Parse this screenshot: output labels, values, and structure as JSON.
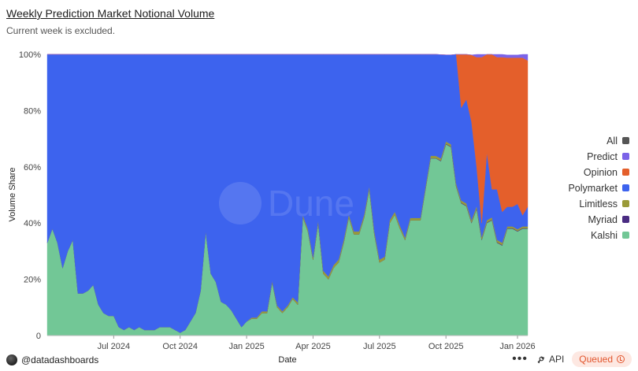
{
  "header": {
    "title": "Weekly Prediction Market Notional Volume",
    "subtitle": "Current week is excluded."
  },
  "chart_data": {
    "type": "area",
    "stacked_percent": true,
    "title": "Weekly Prediction Market Notional Volume",
    "xlabel": "Date",
    "ylabel": "Volume Share",
    "ylim": [
      0,
      100
    ],
    "y_ticks": [
      "0",
      "20%",
      "40%",
      "60%",
      "80%",
      "100%"
    ],
    "x_ticks": [
      "Jul 2024",
      "Oct 2024",
      "Jan 2025",
      "Apr 2025",
      "Jul 2025",
      "Oct 2025",
      "Jan 2026"
    ],
    "x_tick_week_index": [
      13,
      26,
      39,
      52,
      65,
      78,
      92
    ],
    "legend_position": "right",
    "legend": [
      {
        "name": "All",
        "color": "#555555"
      },
      {
        "name": "Predict",
        "color": "#7b63e8"
      },
      {
        "name": "Opinion",
        "color": "#e45f2b"
      },
      {
        "name": "Polymarket",
        "color": "#3d63ee"
      },
      {
        "name": "Limitless",
        "color": "#9a9a38"
      },
      {
        "name": "Myriad",
        "color": "#4a2c82"
      },
      {
        "name": "Kalshi",
        "color": "#72c796"
      }
    ],
    "weeks": 95,
    "series_bottom_to_top": [
      "Kalshi",
      "Myriad",
      "Limitless",
      "Polymarket",
      "Opinion",
      "Predict"
    ],
    "series": [
      {
        "name": "Kalshi",
        "values": [
          33,
          38,
          33,
          24,
          30,
          34,
          15,
          15,
          16,
          18,
          11,
          8,
          7,
          7,
          3,
          2,
          3,
          2,
          3,
          2,
          2,
          2,
          3,
          3,
          3,
          2,
          1,
          2,
          5,
          8,
          16,
          37,
          22,
          19,
          12,
          11,
          9,
          6,
          3,
          5,
          6,
          6,
          8,
          8,
          19,
          10,
          8,
          10,
          13,
          11,
          42,
          37,
          27,
          40,
          22,
          20,
          24,
          26,
          33,
          42,
          36,
          36,
          42,
          52,
          36,
          26,
          27,
          40,
          43,
          38,
          34,
          41,
          41,
          41,
          52,
          63,
          63,
          62,
          68,
          67,
          53,
          47,
          46,
          40,
          45,
          34,
          40,
          41,
          33,
          32,
          38,
          38,
          37,
          38,
          38
        ]
      },
      {
        "name": "Myriad",
        "values": [
          0,
          0,
          0,
          0,
          0,
          0,
          0,
          0,
          0,
          0,
          0,
          0,
          0,
          0,
          0,
          0,
          0,
          0,
          0,
          0,
          0,
          0,
          0,
          0,
          0,
          0,
          0,
          0,
          0,
          0,
          0,
          0,
          0,
          0,
          0,
          0,
          0,
          0,
          0,
          0,
          0,
          0,
          0,
          0,
          0,
          0,
          0,
          0,
          0,
          0,
          0,
          0,
          0,
          0,
          0,
          0,
          0,
          0,
          0,
          0,
          0,
          0,
          0,
          0,
          0,
          0,
          0,
          0,
          0,
          0,
          0,
          0,
          0,
          0,
          0.1,
          0.1,
          0.1,
          0.2,
          0.2,
          0.2,
          0.2,
          0.2,
          0.2,
          0.2,
          0.2,
          0.2,
          0.2,
          0.2,
          0.2,
          0.2,
          0.2,
          0.2,
          0.2,
          0.2,
          0.2
        ]
      },
      {
        "name": "Limitless",
        "values": [
          0,
          0,
          0,
          0,
          0,
          0,
          0,
          0,
          0,
          0,
          0,
          0,
          0,
          0,
          0,
          0,
          0,
          0,
          0,
          0,
          0,
          0,
          0,
          0,
          0,
          0,
          0,
          0,
          0,
          0,
          0,
          0,
          0,
          0,
          0,
          0,
          0,
          0,
          0,
          0,
          0.4,
          0.4,
          0.6,
          0.6,
          0.4,
          0.6,
          0.6,
          0.6,
          0.6,
          0.8,
          0.8,
          0.8,
          0.8,
          0.8,
          1,
          1,
          1,
          1,
          1,
          1,
          1,
          1,
          1,
          1,
          1,
          1,
          1,
          1,
          1,
          1,
          0.8,
          0.8,
          0.8,
          0.8,
          0.8,
          0.8,
          0.8,
          0.8,
          0.8,
          0.8,
          0.8,
          0.8,
          0.8,
          0.8,
          0.8,
          0.8,
          0.8,
          0.8,
          0.8,
          0.8,
          0.6,
          0.6,
          0.6,
          0.6,
          0.6
        ]
      },
      {
        "name": "Polymarket",
        "values": [
          67,
          62,
          67,
          76,
          70,
          66,
          85,
          85,
          84,
          82,
          89,
          92,
          93,
          93,
          97,
          98,
          97,
          98,
          97,
          98,
          98,
          98,
          97,
          97,
          97,
          98,
          99,
          98,
          95,
          92,
          84,
          63,
          78,
          81,
          88,
          89,
          91,
          94,
          97,
          95,
          93.6,
          93.6,
          91.4,
          91.4,
          80.6,
          89.4,
          91.4,
          89.4,
          86.4,
          88.2,
          57.2,
          62.2,
          72.2,
          59.2,
          77,
          79,
          75,
          73,
          66,
          58,
          63,
          63,
          57,
          47,
          63,
          73,
          72,
          59,
          56,
          61,
          65.2,
          58.2,
          58.2,
          58.2,
          47.1,
          36.1,
          36.1,
          36.9,
          30.8,
          31.8,
          46,
          33,
          37,
          35,
          14,
          5,
          24,
          10,
          18,
          11,
          7,
          7,
          9,
          4,
          7
        ]
      },
      {
        "name": "Opinion",
        "values": [
          0,
          0,
          0,
          0,
          0,
          0,
          0,
          0,
          0,
          0,
          0,
          0,
          0,
          0,
          0,
          0,
          0,
          0,
          0,
          0,
          0,
          0,
          0,
          0,
          0,
          0,
          0,
          0,
          0,
          0,
          0,
          0,
          0,
          0,
          0,
          0,
          0,
          0,
          0,
          0,
          0,
          0,
          0,
          0,
          0,
          0,
          0,
          0,
          0,
          0,
          0,
          0,
          0,
          0,
          0,
          0,
          0,
          0,
          0,
          0,
          0,
          0,
          0,
          0,
          0,
          0,
          0,
          0,
          0,
          0,
          0,
          0,
          0,
          0,
          0,
          0,
          0,
          0,
          0,
          0,
          0.8,
          19.8,
          16.8,
          23.8,
          39,
          59,
          35,
          48,
          47,
          55,
          53,
          53,
          52,
          56,
          52
        ]
      },
      {
        "name": "Predict",
        "values": [
          0,
          0,
          0,
          0,
          0,
          0,
          0,
          0,
          0,
          0,
          0,
          0,
          0,
          0,
          0,
          0,
          0,
          0,
          0,
          0,
          0,
          0,
          0,
          0,
          0,
          0,
          0,
          0,
          0,
          0,
          0,
          0,
          0,
          0,
          0,
          0,
          0,
          0,
          0,
          0,
          0,
          0,
          0,
          0,
          0,
          0,
          0,
          0,
          0,
          0,
          0,
          0,
          0,
          0,
          0,
          0,
          0,
          0,
          0,
          0,
          0,
          0,
          0,
          0,
          0,
          0,
          0,
          0,
          0,
          0,
          0,
          0,
          0,
          0,
          0,
          0,
          0,
          0,
          0,
          0,
          0,
          0,
          0,
          0,
          1,
          1,
          0,
          0,
          1,
          1,
          1,
          1,
          1,
          1.8,
          2.2
        ]
      }
    ]
  },
  "watermark": "Dune",
  "footer": {
    "author": "@datadashboards",
    "more_label": "•••",
    "api_label": "API",
    "status_label": "Queued"
  }
}
